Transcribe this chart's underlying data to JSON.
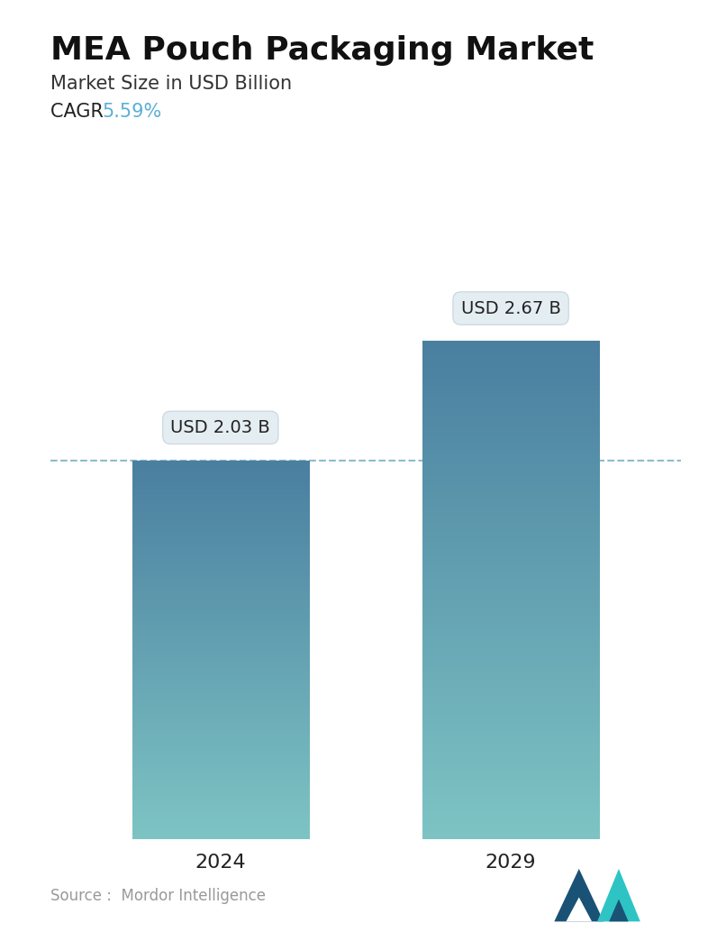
{
  "title": "MEA Pouch Packaging Market",
  "subtitle": "Market Size in USD Billion",
  "cagr_label": "CAGR ",
  "cagr_value": "5.59%",
  "cagr_color": "#5bafd6",
  "categories": [
    "2024",
    "2029"
  ],
  "values": [
    2.03,
    2.67
  ],
  "bar_labels": [
    "USD 2.03 B",
    "USD 2.67 B"
  ],
  "bar_top_color": "#4a7fa0",
  "bar_bottom_color": "#7ec4c4",
  "dashed_line_color": "#7aafc8",
  "dashed_line_value": 2.03,
  "source_text": "Source :  Mordor Intelligence",
  "source_color": "#999999",
  "background_color": "#ffffff",
  "title_fontsize": 26,
  "subtitle_fontsize": 15,
  "cagr_fontsize": 15,
  "bar_label_fontsize": 14,
  "tick_fontsize": 16,
  "source_fontsize": 12,
  "ylim": [
    0,
    3.1
  ],
  "bar_width": 0.28,
  "x_positions": [
    0.27,
    0.73
  ],
  "callout_facecolor": "#e4edf2",
  "callout_edgecolor": "#c5d5de"
}
